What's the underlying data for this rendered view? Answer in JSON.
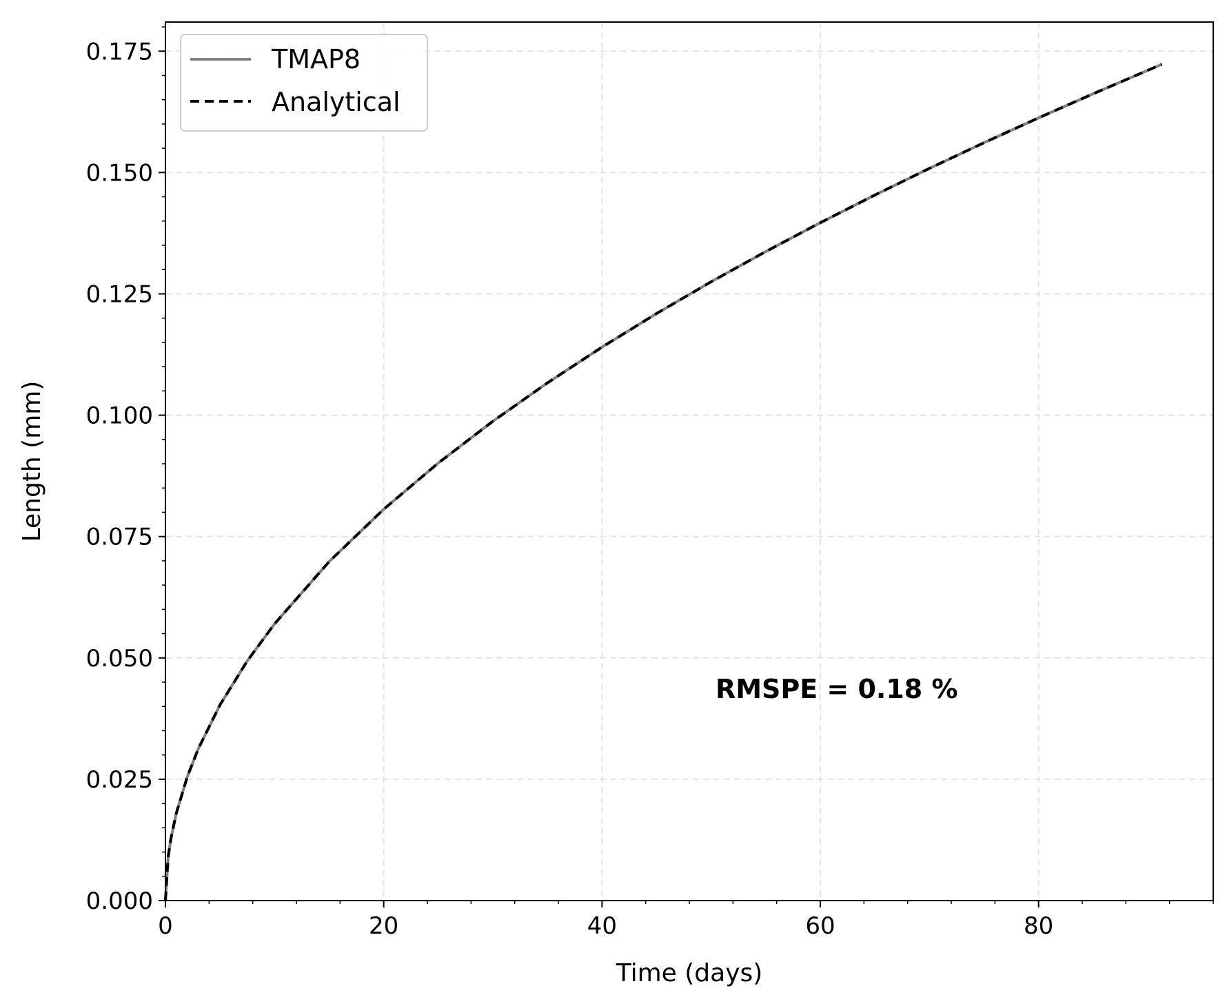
{
  "chart_data": {
    "type": "line",
    "xlabel": "Time (days)",
    "ylabel": "Length (mm)",
    "xlim": [
      0,
      96
    ],
    "ylim": [
      0,
      0.181
    ],
    "x_ticks": [
      0,
      20,
      40,
      60,
      80
    ],
    "x_tick_labels": [
      "0",
      "20",
      "40",
      "60",
      "80"
    ],
    "y_ticks": [
      0,
      0.025,
      0.05,
      0.075,
      0.1,
      0.125,
      0.15,
      0.175
    ],
    "y_tick_labels": [
      "0.000",
      "0.025",
      "0.050",
      "0.075",
      "0.100",
      "0.125",
      "0.150",
      "0.175"
    ],
    "grid": true,
    "legend_position": "top-left",
    "series": [
      {
        "name": "TMAP8",
        "style": "solid",
        "color": "#808080",
        "x": [
          0,
          0.25,
          0.5,
          1,
          2,
          3,
          5,
          7.5,
          10,
          15,
          20,
          25,
          30,
          35,
          40,
          45,
          50,
          55,
          60,
          65,
          70,
          75,
          80,
          85,
          91.3
        ],
        "y": [
          0,
          0.00902,
          0.01275,
          0.01803,
          0.0255,
          0.03123,
          0.04032,
          0.04938,
          0.05702,
          0.06983,
          0.08063,
          0.09015,
          0.09875,
          0.10666,
          0.11403,
          0.12095,
          0.12749,
          0.13371,
          0.13966,
          0.14536,
          0.15085,
          0.15614,
          0.16126,
          0.16622,
          0.1723
        ]
      },
      {
        "name": "Analytical",
        "style": "dashed",
        "color": "#000000",
        "x": [
          0,
          0.25,
          0.5,
          1,
          2,
          3,
          5,
          7.5,
          10,
          15,
          20,
          25,
          30,
          35,
          40,
          45,
          50,
          55,
          60,
          65,
          70,
          75,
          80,
          85,
          91.3
        ],
        "y": [
          0,
          0.00902,
          0.01275,
          0.01803,
          0.0255,
          0.03123,
          0.04032,
          0.04938,
          0.05702,
          0.06983,
          0.08063,
          0.09015,
          0.09875,
          0.10666,
          0.11403,
          0.12095,
          0.12749,
          0.13371,
          0.13966,
          0.14536,
          0.15085,
          0.15614,
          0.16126,
          0.16622,
          0.1723
        ]
      }
    ],
    "annotation": {
      "text": "RMSPE = 0.18 %",
      "x": 61.5,
      "y": 0.0437
    }
  }
}
